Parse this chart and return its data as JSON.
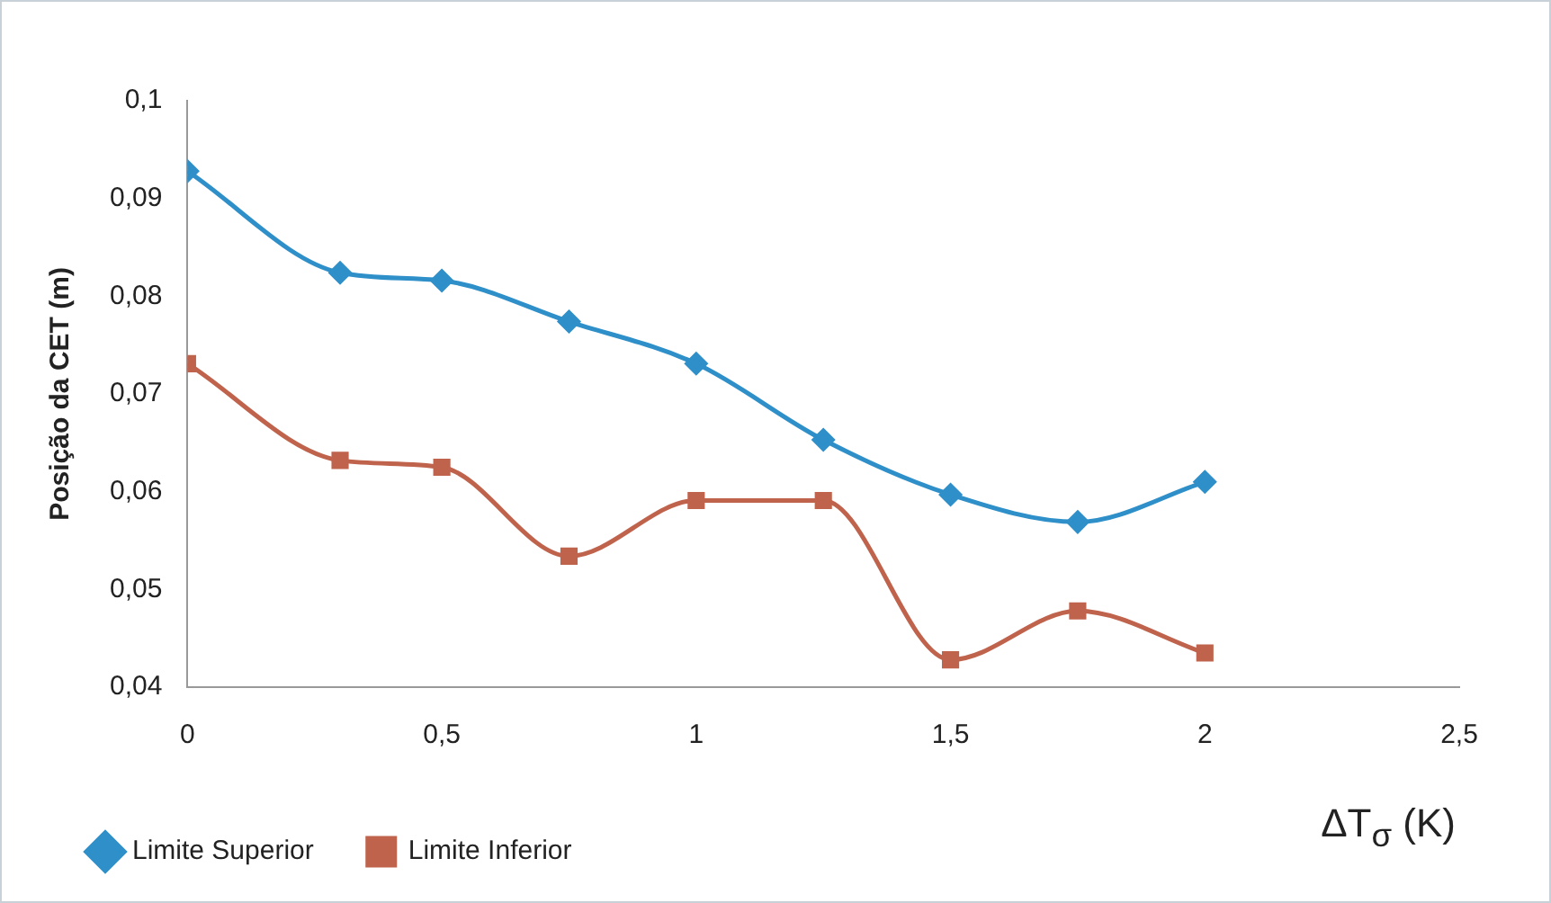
{
  "chart_data": {
    "type": "line",
    "xlabel": "ΔT$_{σ}$ (K)",
    "ylabel": "Posição da CET (m)",
    "series": [
      {
        "name": "Limite Superior",
        "color": "#2e8fc9",
        "marker": "diamond",
        "x": [
          0,
          0.3,
          0.5,
          0.75,
          1,
          1.25,
          1.5,
          1.75,
          2
        ],
        "values": [
          0.0928,
          0.0824,
          0.0816,
          0.0774,
          0.0731,
          0.0653,
          0.0597,
          0.0569,
          0.061
        ]
      },
      {
        "name": "Limite Inferior",
        "color": "#c0634d",
        "marker": "square",
        "x": [
          0,
          0.3,
          0.5,
          0.75,
          1,
          1.25,
          1.5,
          1.75,
          2
        ],
        "values": [
          0.0731,
          0.0632,
          0.0625,
          0.0534,
          0.0591,
          0.0591,
          0.0428,
          0.0478,
          0.0435
        ]
      }
    ],
    "xlim": [
      0,
      2.5
    ],
    "xticks": [
      0,
      {
        "value": 0.5,
        "label": "0,5"
      },
      1,
      {
        "value": 1.5,
        "label": "1,5"
      },
      2,
      {
        "value": 2.5,
        "label": "2,5"
      }
    ],
    "ylim": [
      0.04,
      0.1
    ],
    "yticks": [
      {
        "value": 0.04,
        "label": "0,04"
      },
      {
        "value": 0.05,
        "label": "0,05"
      },
      {
        "value": 0.06,
        "label": "0,06"
      },
      {
        "value": 0.07,
        "label": "0,07"
      },
      {
        "value": 0.08,
        "label": "0,08"
      },
      {
        "value": 0.09,
        "label": "0,09"
      },
      {
        "value": 0.1,
        "label": "0,1"
      }
    ],
    "grid": false,
    "legend": "bottom"
  }
}
